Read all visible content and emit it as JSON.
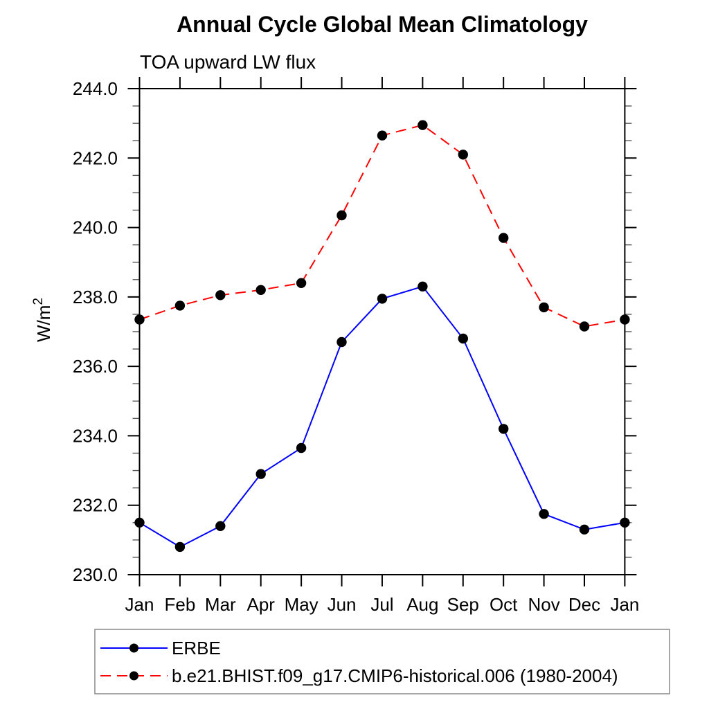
{
  "title": "Annual Cycle Global Mean Climatology",
  "subtitle": "TOA upward LW flux",
  "chart_data": {
    "type": "line",
    "x_categories": [
      "Jan",
      "Feb",
      "Mar",
      "Apr",
      "May",
      "Jun",
      "Jul",
      "Aug",
      "Sep",
      "Oct",
      "Nov",
      "Dec",
      "Jan"
    ],
    "xlabel": "",
    "ylabel": "W/m²",
    "ylim": [
      230.0,
      244.0
    ],
    "ytick_interval": 2.0,
    "yminor_interval": 0.5,
    "ytick_labels": [
      "230.0",
      "232.0",
      "234.0",
      "236.0",
      "238.0",
      "240.0",
      "242.0",
      "244.0"
    ],
    "grid": false,
    "ticks": "outward-all-sides",
    "legend_position": "bottom-left-box",
    "colors": {
      "erbe_line": "#0000ff",
      "model_line": "#ff0000",
      "marker": "#000000",
      "axis": "#000000",
      "minor_tick": "#555555",
      "legend_border": "#888888"
    },
    "series": [
      {
        "name": "ERBE",
        "style": "solid",
        "color": "#0000ff",
        "marker": "circle",
        "marker_color": "#000000",
        "values": [
          231.5,
          230.8,
          231.4,
          232.9,
          233.65,
          236.7,
          237.95,
          238.3,
          236.8,
          234.2,
          231.75,
          231.3,
          231.5
        ]
      },
      {
        "name": "b.e21.BHIST.f09_g17.CMIP6-historical.006 (1980-2004)",
        "style": "dashed",
        "color": "#ff0000",
        "marker": "circle",
        "marker_color": "#000000",
        "values": [
          237.35,
          237.75,
          238.05,
          238.2,
          238.4,
          240.35,
          242.65,
          242.95,
          242.1,
          239.7,
          237.7,
          237.15,
          237.35
        ]
      }
    ]
  }
}
